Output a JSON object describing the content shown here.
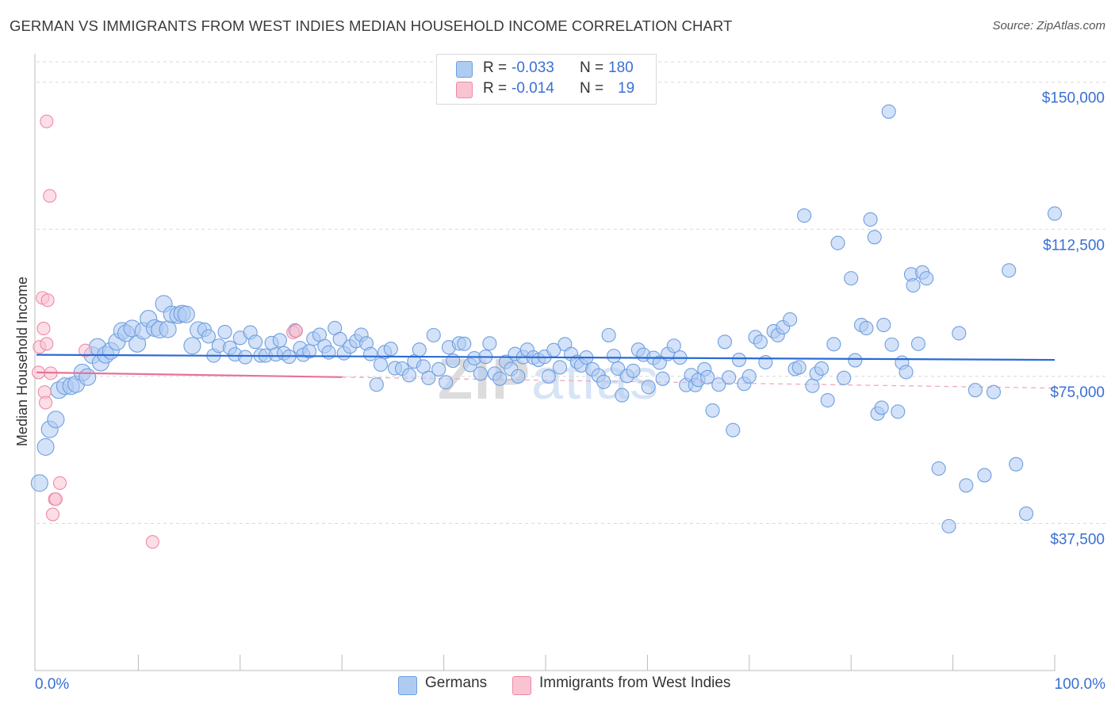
{
  "title": "GERMAN VS IMMIGRANTS FROM WEST INDIES MEDIAN HOUSEHOLD INCOME CORRELATION CHART",
  "source": "Source: ZipAtlas.com",
  "watermark": {
    "zip": "ZIP",
    "atlas": "atlas"
  },
  "legend": {
    "rows": [
      {
        "r_label": "R =",
        "r_value": "-0.033",
        "n_label": "N =",
        "n_value": "180",
        "color": "#aecbf2"
      },
      {
        "r_label": "R =",
        "r_value": "-0.014",
        "n_label": "N =",
        "n_value": "19",
        "color": "#f9c3d2"
      }
    ]
  },
  "bottom_legend": [
    {
      "label": "Germans",
      "color": "#aecbf2"
    },
    {
      "label": "Immigrants from West Indies",
      "color": "#f9c3d2"
    }
  ],
  "chart_data": {
    "type": "scatter",
    "title": "GERMAN VS IMMIGRANTS FROM WEST INDIES MEDIAN HOUSEHOLD INCOME CORRELATION CHART",
    "xlabel": "",
    "ylabel": "Median Household Income",
    "xlim": [
      0,
      100
    ],
    "ylim": [
      0,
      156000
    ],
    "x_tick_labels": [
      "0.0%",
      "100.0%"
    ],
    "y_ticks": [
      37500,
      75000,
      112500,
      150000
    ],
    "y_tick_labels": [
      "$37,500",
      "$75,000",
      "$112,500",
      "$150,000"
    ],
    "grid": true,
    "series": [
      {
        "name": "Germans",
        "color": "#6f9fe0",
        "fill": "#aecbf2",
        "trend": {
          "y_at_0": 80500,
          "y_at_100": 79200,
          "color": "#2a6ad4"
        },
        "points": [
          [
            0.3,
            47800
          ],
          [
            0.9,
            57000
          ],
          [
            1.3,
            61500
          ],
          [
            1.9,
            64000
          ],
          [
            2.2,
            71500
          ],
          [
            2.8,
            72500
          ],
          [
            3.4,
            72500
          ],
          [
            3.9,
            73000
          ],
          [
            4.5,
            76000
          ],
          [
            5.0,
            74800
          ],
          [
            5.5,
            80400
          ],
          [
            6.0,
            82500
          ],
          [
            6.3,
            78500
          ],
          [
            6.8,
            80500
          ],
          [
            7.3,
            81500
          ],
          [
            7.9,
            83800
          ],
          [
            8.4,
            86600
          ],
          [
            8.8,
            86000
          ],
          [
            9.4,
            87200
          ],
          [
            9.9,
            83300
          ],
          [
            10.5,
            86600
          ],
          [
            11.0,
            89700
          ],
          [
            11.6,
            87300
          ],
          [
            12.1,
            86900
          ],
          [
            12.5,
            93500
          ],
          [
            12.9,
            87000
          ],
          [
            13.3,
            90800
          ],
          [
            13.9,
            90600
          ],
          [
            14.3,
            91000
          ],
          [
            14.7,
            90800
          ],
          [
            15.3,
            82800
          ],
          [
            15.9,
            86800
          ],
          [
            16.5,
            86900
          ],
          [
            16.9,
            85200
          ],
          [
            17.4,
            80300
          ],
          [
            17.9,
            82800
          ],
          [
            18.5,
            86300
          ],
          [
            19.0,
            82300
          ],
          [
            19.5,
            80600
          ],
          [
            20.0,
            84800
          ],
          [
            20.5,
            79900
          ],
          [
            21.0,
            86200
          ],
          [
            21.5,
            83800
          ],
          [
            22.0,
            80300
          ],
          [
            22.5,
            80300
          ],
          [
            23.1,
            83500
          ],
          [
            23.5,
            80600
          ],
          [
            23.9,
            84200
          ],
          [
            24.3,
            80900
          ],
          [
            24.8,
            80000
          ],
          [
            25.4,
            86700
          ],
          [
            25.9,
            82200
          ],
          [
            26.2,
            80500
          ],
          [
            26.8,
            81400
          ],
          [
            27.2,
            84600
          ],
          [
            27.8,
            85600
          ],
          [
            28.3,
            82700
          ],
          [
            28.7,
            81100
          ],
          [
            29.3,
            87300
          ],
          [
            29.8,
            84500
          ],
          [
            30.2,
            80900
          ],
          [
            30.8,
            82600
          ],
          [
            31.4,
            84000
          ],
          [
            31.9,
            85600
          ],
          [
            32.4,
            83400
          ],
          [
            32.8,
            80700
          ],
          [
            33.4,
            72900
          ],
          [
            33.8,
            78000
          ],
          [
            34.2,
            81200
          ],
          [
            34.8,
            82000
          ],
          [
            35.2,
            77100
          ],
          [
            35.9,
            77000
          ],
          [
            36.6,
            75300
          ],
          [
            37.1,
            78800
          ],
          [
            37.6,
            81800
          ],
          [
            38.0,
            77500
          ],
          [
            38.5,
            74600
          ],
          [
            39.0,
            85500
          ],
          [
            39.5,
            76800
          ],
          [
            40.2,
            73500
          ],
          [
            40.5,
            82400
          ],
          [
            40.9,
            79000
          ],
          [
            41.5,
            83400
          ],
          [
            42.0,
            83300
          ],
          [
            42.6,
            77900
          ],
          [
            43.0,
            79600
          ],
          [
            43.6,
            75700
          ],
          [
            44.1,
            80000
          ],
          [
            44.5,
            83400
          ],
          [
            45.0,
            75700
          ],
          [
            45.5,
            74400
          ],
          [
            46.1,
            78700
          ],
          [
            46.6,
            76900
          ],
          [
            47.0,
            80700
          ],
          [
            47.3,
            75000
          ],
          [
            47.8,
            79900
          ],
          [
            48.2,
            81800
          ],
          [
            48.8,
            79800
          ],
          [
            49.3,
            79200
          ],
          [
            49.9,
            80000
          ],
          [
            50.3,
            75000
          ],
          [
            50.8,
            81700
          ],
          [
            51.4,
            77300
          ],
          [
            51.9,
            83200
          ],
          [
            52.5,
            80700
          ],
          [
            53.1,
            78700
          ],
          [
            53.5,
            77800
          ],
          [
            54.0,
            79800
          ],
          [
            54.6,
            76800
          ],
          [
            55.2,
            75200
          ],
          [
            55.7,
            73600
          ],
          [
            56.2,
            85500
          ],
          [
            56.7,
            80200
          ],
          [
            57.1,
            77000
          ],
          [
            57.5,
            70200
          ],
          [
            58.0,
            75100
          ],
          [
            58.6,
            76400
          ],
          [
            59.1,
            81800
          ],
          [
            59.6,
            80500
          ],
          [
            60.1,
            72300
          ],
          [
            60.6,
            79700
          ],
          [
            61.2,
            78500
          ],
          [
            61.5,
            74400
          ],
          [
            62.0,
            80700
          ],
          [
            62.6,
            82800
          ],
          [
            63.2,
            79800
          ],
          [
            63.8,
            72800
          ],
          [
            64.3,
            75300
          ],
          [
            64.7,
            72800
          ],
          [
            65.0,
            74100
          ],
          [
            65.6,
            76800
          ],
          [
            65.9,
            74800
          ],
          [
            66.4,
            66300
          ],
          [
            67.0,
            72900
          ],
          [
            67.6,
            83800
          ],
          [
            68.0,
            74700
          ],
          [
            68.4,
            61300
          ],
          [
            69.0,
            79200
          ],
          [
            69.5,
            73100
          ],
          [
            70.0,
            75000
          ],
          [
            70.6,
            85000
          ],
          [
            71.1,
            83800
          ],
          [
            71.6,
            78600
          ],
          [
            72.4,
            86500
          ],
          [
            72.8,
            85500
          ],
          [
            73.3,
            87500
          ],
          [
            74.0,
            89500
          ],
          [
            74.5,
            76900
          ],
          [
            74.9,
            77300
          ],
          [
            75.4,
            116000
          ],
          [
            76.2,
            72600
          ],
          [
            76.6,
            75700
          ],
          [
            77.1,
            77000
          ],
          [
            77.7,
            68900
          ],
          [
            78.3,
            83200
          ],
          [
            78.7,
            109000
          ],
          [
            79.3,
            74600
          ],
          [
            80.0,
            100000
          ],
          [
            80.4,
            79100
          ],
          [
            81.0,
            88100
          ],
          [
            81.5,
            87300
          ],
          [
            81.9,
            115000
          ],
          [
            82.3,
            110500
          ],
          [
            82.6,
            65500
          ],
          [
            83.0,
            67000
          ],
          [
            83.2,
            88100
          ],
          [
            83.7,
            142500
          ],
          [
            84.0,
            83100
          ],
          [
            84.6,
            66000
          ],
          [
            85.0,
            78500
          ],
          [
            85.4,
            76100
          ],
          [
            85.9,
            101000
          ],
          [
            86.1,
            98200
          ],
          [
            86.6,
            83300
          ],
          [
            87.0,
            101500
          ],
          [
            87.4,
            100000
          ],
          [
            88.6,
            51500
          ],
          [
            89.6,
            36800
          ],
          [
            90.6,
            86000
          ],
          [
            91.3,
            47200
          ],
          [
            92.2,
            71500
          ],
          [
            93.1,
            49800
          ],
          [
            94.0,
            71000
          ],
          [
            95.5,
            102000
          ],
          [
            96.2,
            52600
          ],
          [
            97.2,
            40000
          ],
          [
            100.0,
            116500
          ]
        ]
      },
      {
        "name": "Immigrants from West Indies",
        "color": "#ee8aa6",
        "fill": "#f9c3d2",
        "trend": {
          "y_at_0": 76000,
          "y_at_100": 72000,
          "solid_until_x": 30,
          "color": "#e6739a"
        },
        "points": [
          [
            0.2,
            76000
          ],
          [
            0.3,
            82500
          ],
          [
            0.6,
            95000
          ],
          [
            0.7,
            87200
          ],
          [
            0.8,
            71000
          ],
          [
            0.9,
            68300
          ],
          [
            1.0,
            83300
          ],
          [
            1.0,
            140000
          ],
          [
            1.1,
            94400
          ],
          [
            1.3,
            121000
          ],
          [
            1.4,
            75800
          ],
          [
            1.6,
            39800
          ],
          [
            1.8,
            43700
          ],
          [
            1.9,
            43700
          ],
          [
            2.3,
            47800
          ],
          [
            4.8,
            81600
          ],
          [
            11.4,
            32800
          ],
          [
            25.2,
            86200
          ],
          [
            25.5,
            86600
          ]
        ]
      }
    ]
  }
}
